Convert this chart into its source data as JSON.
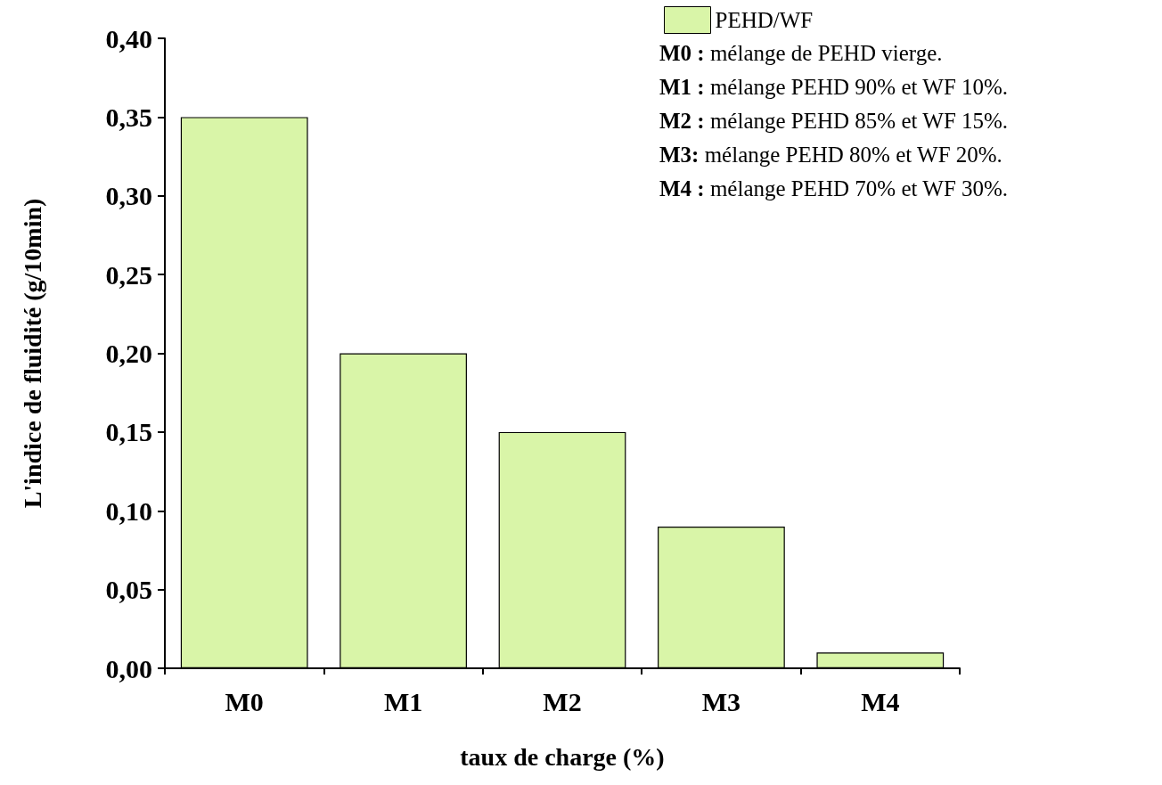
{
  "chart_data": {
    "type": "bar",
    "xlabel": "taux de charge (%)",
    "ylabel": "L'indice de fluidité (g/10min)",
    "categories": [
      "M0",
      "M1",
      "M2",
      "M3",
      "M4"
    ],
    "series": [
      {
        "name": "PEHD/WF",
        "color": "#d9f5a8",
        "values": [
          0.35,
          0.2,
          0.15,
          0.09,
          0.01
        ]
      }
    ],
    "ylim": [
      0,
      0.4
    ],
    "yticks": [
      {
        "value": 0,
        "label": "0,00"
      },
      {
        "value": 0.05,
        "label": "0,05"
      },
      {
        "value": 0.1,
        "label": "0,10"
      },
      {
        "value": 0.15,
        "label": "0,15"
      },
      {
        "value": 0.2,
        "label": "0,20"
      },
      {
        "value": 0.25,
        "label": "0,25"
      },
      {
        "value": 0.3,
        "label": "0,30"
      },
      {
        "value": 0.35,
        "label": "0,35"
      },
      {
        "value": 0.4,
        "label": "0,40"
      }
    ],
    "grid": false,
    "legend": "top right",
    "annotations": [
      "M0 : mélange de PEHD vierge.",
      "M1 : mélange PEHD 90% et WF 10%.",
      "M2 : mélange PEHD 85% et WF 15%.",
      "M3: mélange PEHD 80% et WF 20%.",
      "M4 : mélange PEHD 70% et WF 30%."
    ]
  }
}
